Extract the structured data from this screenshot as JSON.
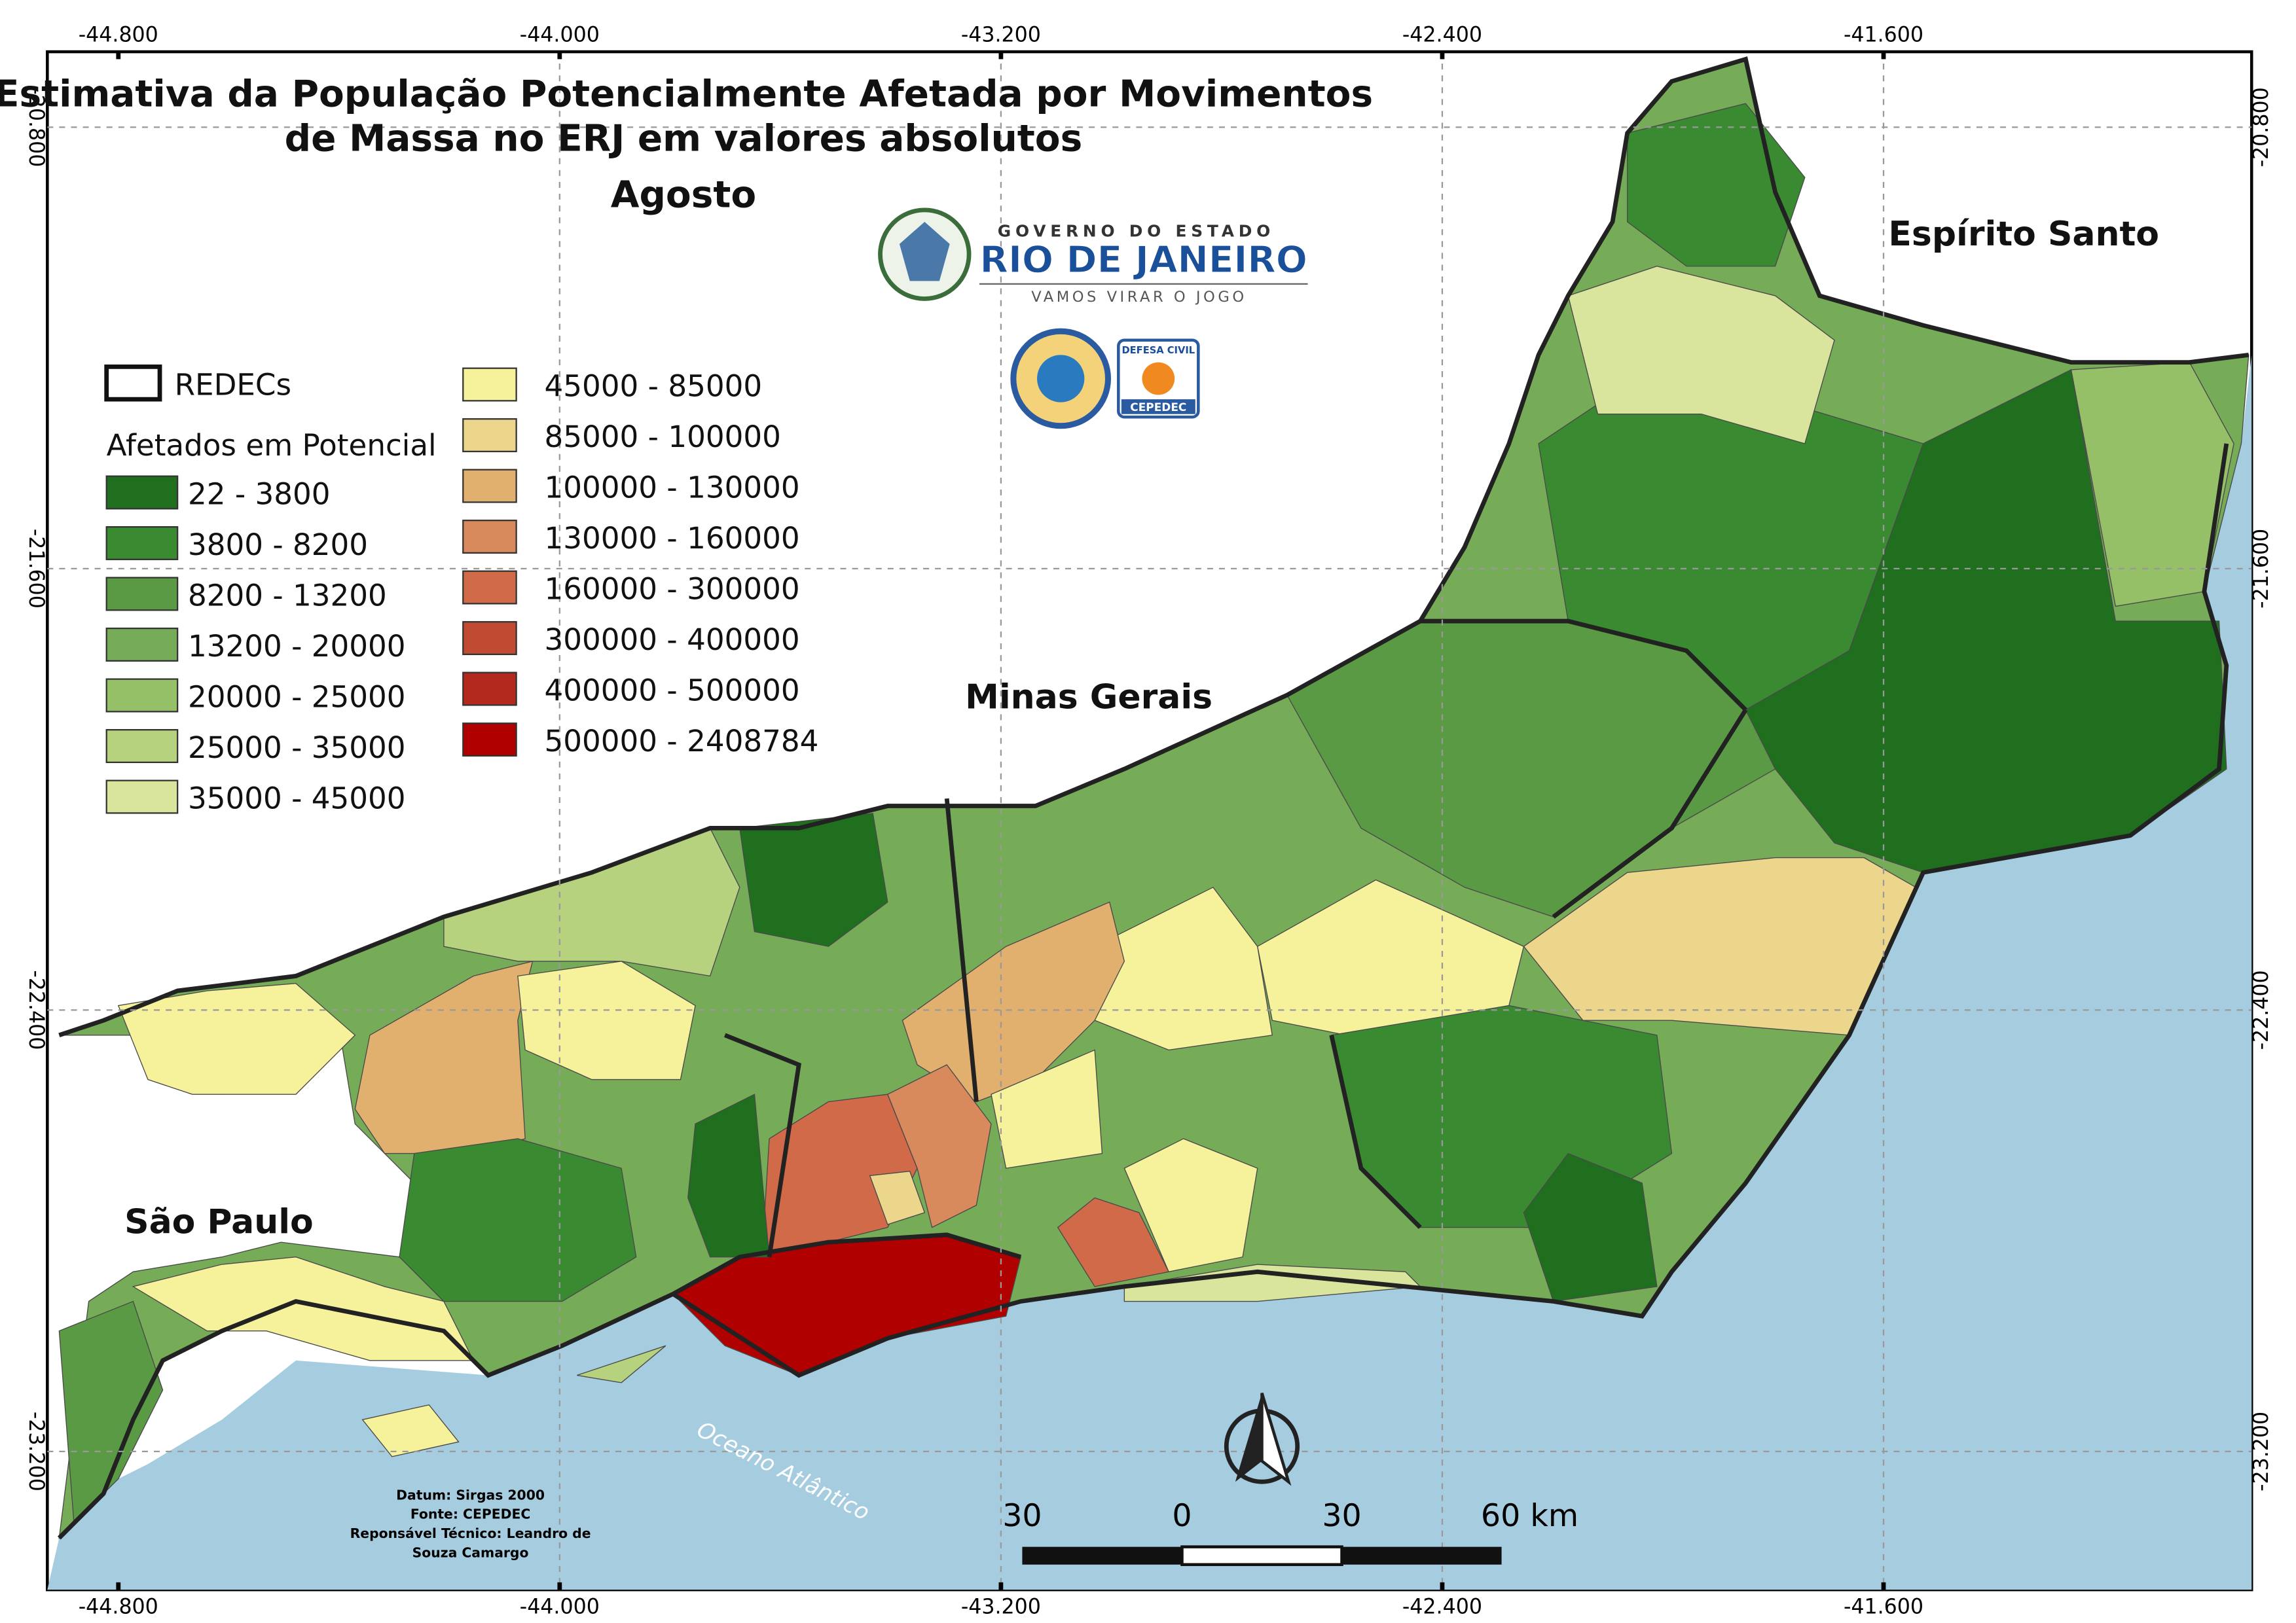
{
  "title": [
    "Estimativa da População Potencialmente Afetada por Movimentos",
    "de Massa no ERJ em valores absolutos"
  ],
  "month": "Agosto",
  "legend": {
    "boundary": "REDECs",
    "heading": "Afetados em Potencial",
    "classes": [
      {
        "label": "22 - 3800",
        "color": "#1f6f1f"
      },
      {
        "label": "3800 - 8200",
        "color": "#3a8a32"
      },
      {
        "label": "8200 - 13200",
        "color": "#5a9a44"
      },
      {
        "label": "13200 - 20000",
        "color": "#76ac58"
      },
      {
        "label": "20000 - 25000",
        "color": "#96c068"
      },
      {
        "label": "25000 - 35000",
        "color": "#b6d27e"
      },
      {
        "label": "35000 - 45000",
        "color": "#d9e59c"
      },
      {
        "label": "45000 - 85000",
        "color": "#f5f29b"
      },
      {
        "label": "85000 - 100000",
        "color": "#ecd68c"
      },
      {
        "label": "100000 - 130000",
        "color": "#e1b06f"
      },
      {
        "label": "130000 - 160000",
        "color": "#d98a5c"
      },
      {
        "label": "160000 - 300000",
        "color": "#d06a48"
      },
      {
        "label": "300000 - 400000",
        "color": "#c04b32"
      },
      {
        "label": "400000 - 500000",
        "color": "#b4291e"
      },
      {
        "label": "500000 - 2408784",
        "color": "#b00000"
      }
    ]
  },
  "coordinates": {
    "longitudes": [
      "-44.800",
      "-44.000",
      "-43.200",
      "-42.400",
      "-41.600"
    ],
    "latitudes": [
      "-20.800",
      "-21.600",
      "-22.400",
      "-23.200"
    ]
  },
  "places": {
    "es": "Espírito Santo",
    "mg": "Minas Gerais",
    "sp": "São Paulo",
    "ocean": "Oceano Atlântico"
  },
  "logo": {
    "line1": "GOVERNO DO ESTADO",
    "line2": "RIO DE JANEIRO",
    "line3": "VAMOS VIRAR O JOGO",
    "badge1": "DEFESA CIVIL",
    "badge2": "CEPEDEC"
  },
  "credits": [
    "Datum: Sirgas 2000",
    "Fonte: CEPEDEC",
    "Reponsável Técnico: Leandro de",
    "Souza Camargo"
  ],
  "scale": [
    "30",
    "0",
    "30",
    "60 km"
  ]
}
